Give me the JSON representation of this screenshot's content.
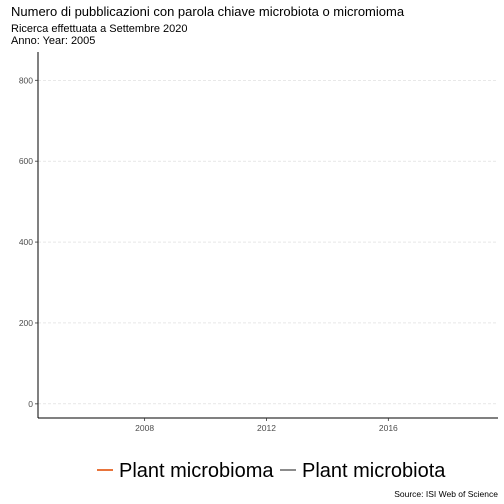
{
  "chart_data": {
    "type": "line",
    "title": "Numero di pubblicazioni con parola chiave microbiota o micromioma",
    "subtitle_lines": [
      "Ricerca effettuata a Settembre 2020",
      "Anno: Year: 2005"
    ],
    "caption": "Source: ISI Web of Science",
    "xlabel": "",
    "ylabel": "",
    "xlim": [
      2004.5,
      2019.6
    ],
    "ylim": [
      -35,
      870
    ],
    "x_ticks": [
      2008,
      2012,
      2016
    ],
    "y_ticks": [
      0,
      200,
      400,
      600,
      800
    ],
    "grid": {
      "horizontal": true,
      "vertical": false
    },
    "legend_position": "bottom",
    "series": [
      {
        "name": "Plant microbioma",
        "color": "#e8743b",
        "x": [],
        "values": []
      },
      {
        "name": "Plant microbiota",
        "color": "#8c8c8c",
        "x": [],
        "values": []
      }
    ]
  }
}
